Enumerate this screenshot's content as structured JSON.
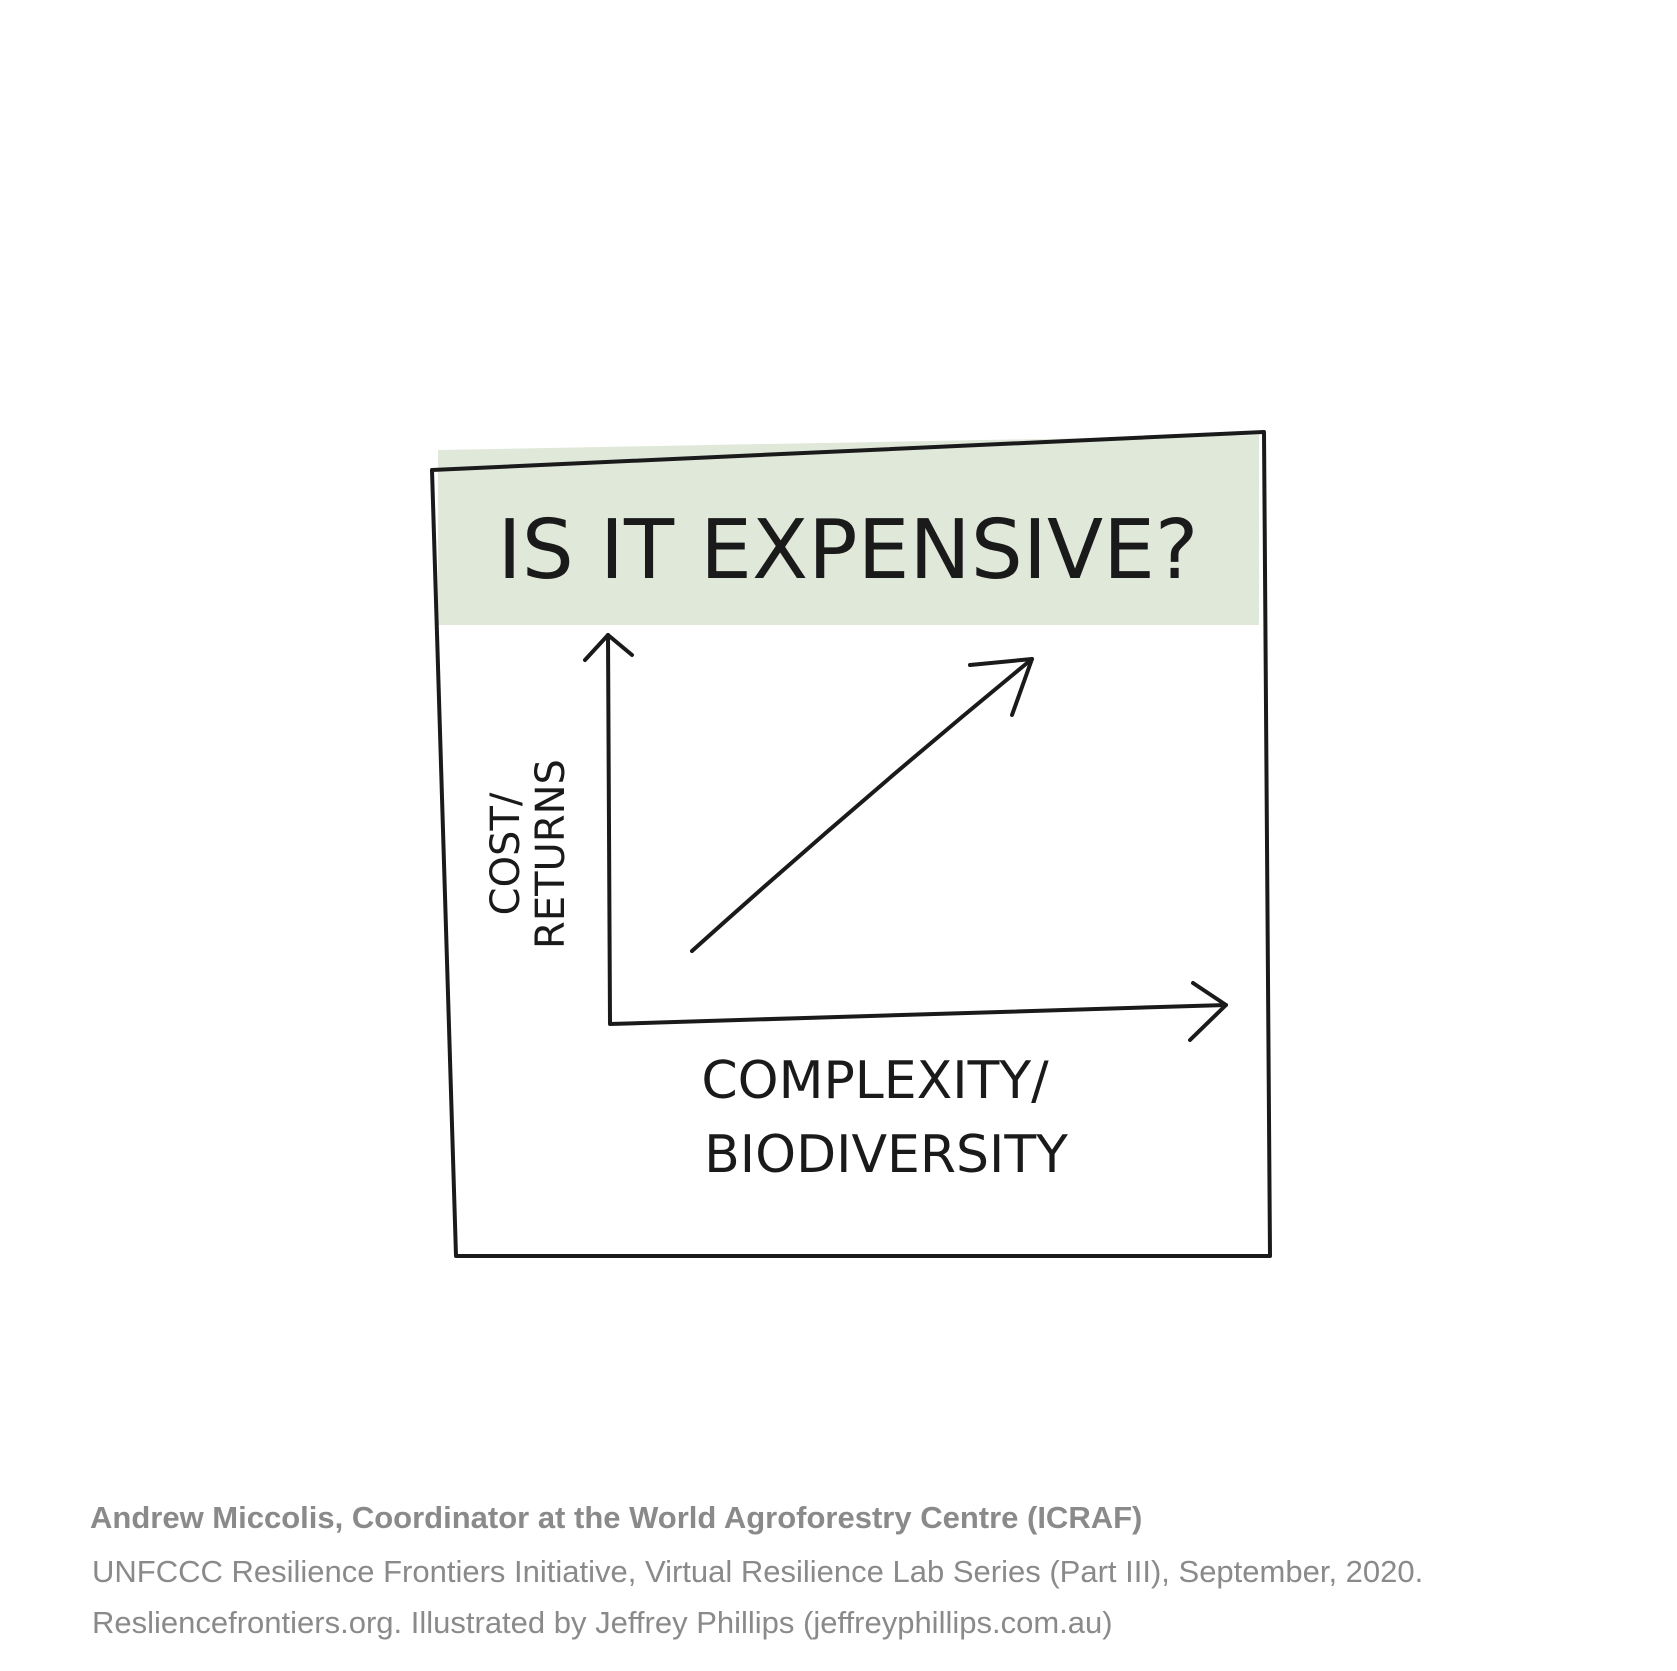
{
  "title": "IS IT EXPENSIVE?",
  "y_axis_label": [
    "COST/",
    "RETURNS"
  ],
  "x_axis_label": [
    "COMPLEXITY/",
    "BIODIVERSITY"
  ],
  "caption": {
    "author": "Andrew Miccolis,  Coordinator at the World Agroforestry Centre (ICRAF)",
    "source": "UNFCCC Resilience Frontiers Initiative, Virtual Resilience Lab Series (Part III), September, 2020.",
    "credit": "Resliencefrontiers.org. Illustrated by Jeffrey Phillips (jeffreyphillips.com.au)"
  }
}
